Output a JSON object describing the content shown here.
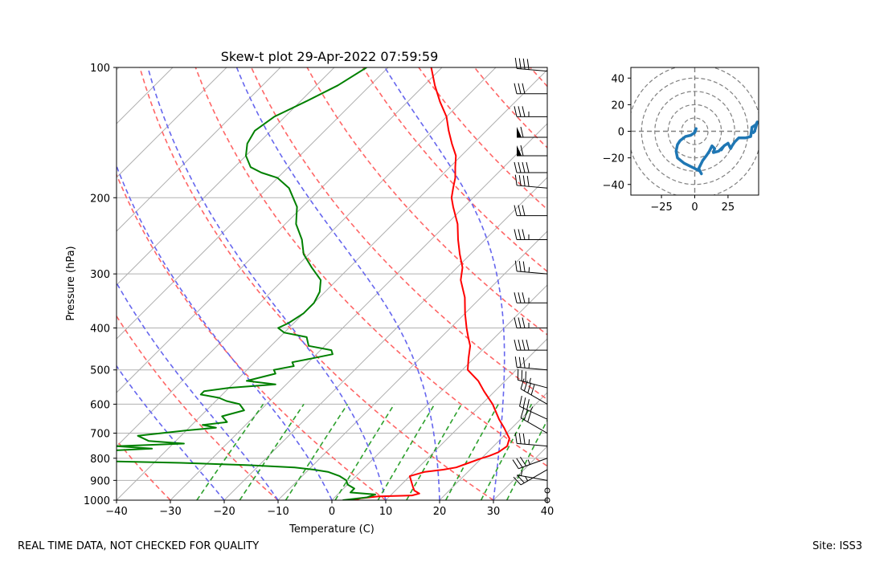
{
  "footer": {
    "left": "REAL TIME DATA, NOT CHECKED FOR QUALITY",
    "right": "Site: ISS3"
  },
  "chart_data": [
    {
      "type": "skew-t",
      "title": "Skew-t plot 29-Apr-2022 07:59:59",
      "xlabel": "Temperature (C)",
      "ylabel": "Pressure (hPa)",
      "xlim": [
        -40,
        40
      ],
      "ylim": [
        1000,
        100
      ],
      "y_scale": "log",
      "x_ticks": [
        "−40",
        "−30",
        "−20",
        "−10",
        "0",
        "10",
        "20",
        "30",
        "40"
      ],
      "y_ticks": [
        "100",
        "200",
        "300",
        "400",
        "500",
        "600",
        "700",
        "800",
        "900",
        "1000"
      ],
      "colors": {
        "temperature": "#ff0000",
        "dewpoint": "#008000",
        "dry_adiabats": "#ff6666",
        "moist_adiabats": "#6666ee",
        "mixing_ratio": "#2ca02c",
        "isotherms": "#b0b0b0",
        "wind_barbs": "#000000"
      },
      "series": [
        {
          "name": "temperature",
          "points": [
            [
              1000,
              4
            ],
            [
              990,
              5
            ],
            [
              980,
              8
            ],
            [
              975,
              14
            ],
            [
              965,
              15
            ],
            [
              950,
              13.5
            ],
            [
              930,
              12.5
            ],
            [
              900,
              11
            ],
            [
              880,
              10
            ],
            [
              860,
              12
            ],
            [
              850,
              15
            ],
            [
              840,
              17
            ],
            [
              820,
              18.5
            ],
            [
              800,
              20
            ],
            [
              790,
              21
            ],
            [
              775,
              22
            ],
            [
              750,
              22.5
            ],
            [
              720,
              21.5
            ],
            [
              700,
              20
            ],
            [
              680,
              18.5
            ],
            [
              650,
              16
            ],
            [
              600,
              12
            ],
            [
              560,
              8
            ],
            [
              530,
              5
            ],
            [
              500,
              1
            ],
            [
              470,
              -1
            ],
            [
              440,
              -3
            ],
            [
              420,
              -5
            ],
            [
              400,
              -7
            ],
            [
              370,
              -10
            ],
            [
              340,
              -13
            ],
            [
              310,
              -17
            ],
            [
              290,
              -19
            ],
            [
              270,
              -22
            ],
            [
              250,
              -25
            ],
            [
              230,
              -28
            ],
            [
              210,
              -32
            ],
            [
              200,
              -34
            ],
            [
              190,
              -35.5
            ],
            [
              180,
              -37
            ],
            [
              170,
              -39
            ],
            [
              160,
              -41
            ],
            [
              150,
              -44
            ],
            [
              140,
              -47
            ],
            [
              130,
              -50
            ],
            [
              120,
              -54
            ],
            [
              110,
              -58
            ],
            [
              100,
              -62
            ]
          ]
        },
        {
          "name": "dewpoint",
          "points": [
            [
              1000,
              2
            ],
            [
              985,
              6
            ],
            [
              970,
              7
            ],
            [
              960,
              2
            ],
            [
              940,
              2
            ],
            [
              920,
              0
            ],
            [
              900,
              -1
            ],
            [
              880,
              -3
            ],
            [
              860,
              -6
            ],
            [
              850,
              -9
            ],
            [
              840,
              -13
            ],
            [
              830,
              -22
            ],
            [
              820,
              -35
            ],
            [
              810,
              -55
            ],
            [
              800,
              -58
            ],
            [
              790,
              -60
            ],
            [
              780,
              -62
            ],
            [
              770,
              -52
            ],
            [
              760,
              -43
            ],
            [
              750,
              -50
            ],
            [
              740,
              -38
            ],
            [
              730,
              -45
            ],
            [
              710,
              -48
            ],
            [
              690,
              -40
            ],
            [
              680,
              -35
            ],
            [
              670,
              -38
            ],
            [
              660,
              -34
            ],
            [
              640,
              -36
            ],
            [
              620,
              -33
            ],
            [
              600,
              -35
            ],
            [
              590,
              -38
            ],
            [
              580,
              -40
            ],
            [
              570,
              -44
            ],
            [
              560,
              -44
            ],
            [
              550,
              -40
            ],
            [
              540,
              -32
            ],
            [
              530,
              -38
            ],
            [
              520,
              -36
            ],
            [
              510,
              -34
            ],
            [
              500,
              -35
            ],
            [
              490,
              -32
            ],
            [
              480,
              -33
            ],
            [
              470,
              -30
            ],
            [
              460,
              -27
            ],
            [
              450,
              -28
            ],
            [
              440,
              -33
            ],
            [
              430,
              -34
            ],
            [
              420,
              -35
            ],
            [
              410,
              -40
            ],
            [
              400,
              -42
            ],
            [
              390,
              -41
            ],
            [
              370,
              -40
            ],
            [
              350,
              -40
            ],
            [
              330,
              -41
            ],
            [
              310,
              -43
            ],
            [
              290,
              -47
            ],
            [
              270,
              -51
            ],
            [
              250,
              -54
            ],
            [
              230,
              -58
            ],
            [
              210,
              -61
            ],
            [
              190,
              -66
            ],
            [
              180,
              -70
            ],
            [
              175,
              -74
            ],
            [
              170,
              -77
            ],
            [
              160,
              -80
            ],
            [
              150,
              -82
            ],
            [
              140,
              -83
            ],
            [
              130,
              -82
            ],
            [
              120,
              -79
            ],
            [
              110,
              -76
            ],
            [
              100,
              -74
            ]
          ]
        }
      ],
      "wind_profile": [
        {
          "p": 1000,
          "speed": 0,
          "dir": 0
        },
        {
          "p": 950,
          "speed": 0,
          "dir": 0
        },
        {
          "p": 900,
          "speed": 5,
          "dir": 280
        },
        {
          "p": 850,
          "speed": 25,
          "dir": 240
        },
        {
          "p": 800,
          "speed": 35,
          "dir": 250
        },
        {
          "p": 750,
          "speed": 35,
          "dir": 275
        },
        {
          "p": 700,
          "speed": 30,
          "dir": 300
        },
        {
          "p": 650,
          "speed": 35,
          "dir": 295
        },
        {
          "p": 600,
          "speed": 40,
          "dir": 300
        },
        {
          "p": 550,
          "speed": 35,
          "dir": 285
        },
        {
          "p": 500,
          "speed": 35,
          "dir": 275
        },
        {
          "p": 450,
          "speed": 40,
          "dir": 270
        },
        {
          "p": 400,
          "speed": 35,
          "dir": 270
        },
        {
          "p": 350,
          "speed": 35,
          "dir": 270
        },
        {
          "p": 300,
          "speed": 35,
          "dir": 275
        },
        {
          "p": 250,
          "speed": 35,
          "dir": 270
        },
        {
          "p": 220,
          "speed": 30,
          "dir": 270
        },
        {
          "p": 190,
          "speed": 40,
          "dir": 275
        },
        {
          "p": 175,
          "speed": 40,
          "dir": 270
        },
        {
          "p": 160,
          "speed": 60,
          "dir": 270
        },
        {
          "p": 145,
          "speed": 60,
          "dir": 270
        },
        {
          "p": 130,
          "speed": 35,
          "dir": 270
        },
        {
          "p": 115,
          "speed": 30,
          "dir": 270
        },
        {
          "p": 102,
          "speed": 40,
          "dir": 275
        }
      ]
    },
    {
      "type": "hodograph",
      "xlim": [
        -48,
        48
      ],
      "ylim": [
        -48,
        48
      ],
      "x_ticks": [
        "−25",
        "0",
        "25"
      ],
      "y_ticks": [
        "−40",
        "−20",
        "0",
        "20",
        "40"
      ],
      "rings": [
        10,
        20,
        30,
        40,
        50
      ],
      "color": "#1f77b4",
      "u": [
        0,
        1,
        0,
        -3,
        -7,
        -11,
        -13,
        -14,
        -13,
        -8,
        -2,
        4,
        5,
        3,
        4,
        6,
        9,
        11,
        13,
        15,
        14,
        18,
        21,
        20,
        22,
        25,
        27,
        28,
        30,
        33,
        38,
        42,
        43,
        46,
        47,
        45,
        44
      ],
      "v": [
        0,
        2,
        -1,
        -3,
        -4,
        -7,
        -10,
        -15,
        -20,
        -24,
        -27,
        -30,
        -32,
        -28,
        -26,
        -22,
        -18,
        -15,
        -11,
        -13,
        -16,
        -15,
        -12,
        -14,
        -11,
        -9,
        -13,
        -11,
        -8,
        -5,
        -5,
        -4,
        3,
        5,
        7,
        0,
        -1
      ]
    }
  ]
}
